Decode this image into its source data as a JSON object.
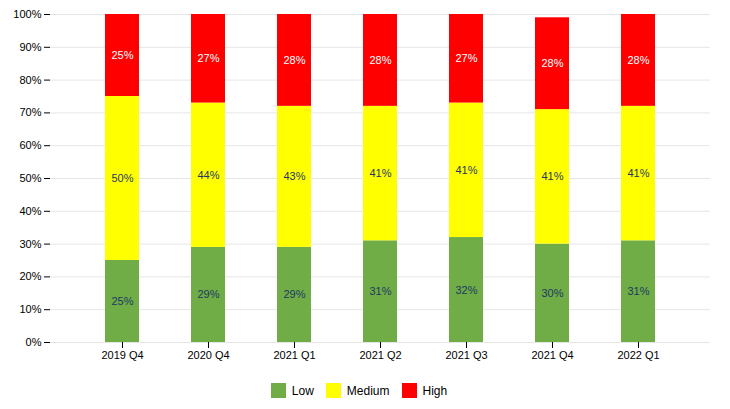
{
  "chart_data": {
    "type": "bar",
    "stacked": true,
    "categories": [
      "2019 Q4",
      "2020 Q4",
      "2021 Q1",
      "2021 Q2",
      "2021 Q3",
      "2021 Q4",
      "2022 Q1"
    ],
    "series": [
      {
        "name": "Low",
        "color": "#70ad47",
        "values": [
          25,
          29,
          29,
          31,
          32,
          30,
          31
        ],
        "value_labels": [
          "25%",
          "29%",
          "29%",
          "31%",
          "32%",
          "30%",
          "31%"
        ]
      },
      {
        "name": "Medium",
        "color": "#ffff00",
        "values": [
          50,
          44,
          43,
          41,
          41,
          41,
          41
        ],
        "value_labels": [
          "50%",
          "44%",
          "43%",
          "41%",
          "41%",
          "41%",
          "41%"
        ]
      },
      {
        "name": "High",
        "color": "#ff0000",
        "values": [
          25,
          27,
          28,
          28,
          27,
          28,
          28
        ],
        "value_labels": [
          "25%",
          "27%",
          "28%",
          "28%",
          "27%",
          "28%",
          "28%"
        ]
      }
    ],
    "ylim": [
      0,
      100
    ],
    "yticks": [
      {
        "value": 0,
        "label": "0%"
      },
      {
        "value": 10,
        "label": "10%"
      },
      {
        "value": 20,
        "label": "20%"
      },
      {
        "value": 30,
        "label": "30%"
      },
      {
        "value": 40,
        "label": "40%"
      },
      {
        "value": 50,
        "label": "50%"
      },
      {
        "value": 60,
        "label": "60%"
      },
      {
        "value": 70,
        "label": "70%"
      },
      {
        "value": 80,
        "label": "80%"
      },
      {
        "value": 90,
        "label": "90%"
      },
      {
        "value": 100,
        "label": "100%"
      }
    ],
    "grid": true,
    "data_labels": true,
    "legend": "bottom"
  }
}
